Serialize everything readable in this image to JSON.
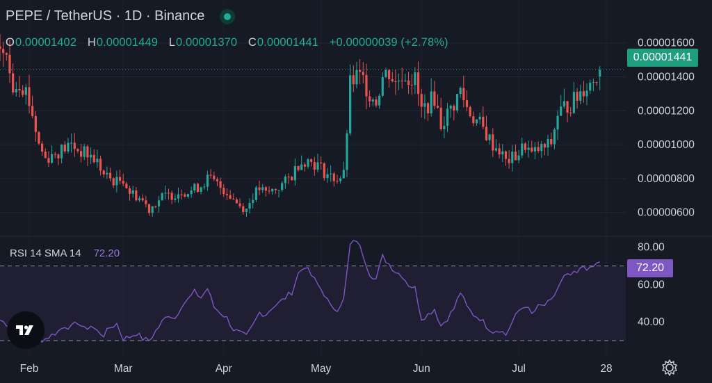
{
  "header": {
    "title": "PEPE / TetherUS · 1D · Binance",
    "ohlc": [
      {
        "key": "O",
        "value": "0.00001402"
      },
      {
        "key": "H",
        "value": "0.00001449"
      },
      {
        "key": "L",
        "value": "0.00001370"
      },
      {
        "key": "C",
        "value": "0.00001441"
      }
    ],
    "change": "+0.00000039 (+2.78%)"
  },
  "price_badge": "0.00001441",
  "rsi": {
    "label": "RSI 14 SMA 14",
    "value": "72.20",
    "badge": "72.20"
  },
  "colors": {
    "background": "#161a25",
    "up": "#26a69a",
    "down": "#ef5350",
    "rsi_line": "#7e57c2",
    "rsi_band": "#2a2340",
    "price_badge": "#1e9e7e",
    "rsi_badge": "#7e57c2"
  },
  "icons": [
    "status-dot-icon",
    "tradingview-logo-icon",
    "settings-gear-icon"
  ],
  "chart_data": [
    {
      "type": "candlestick",
      "title": "PEPE / TetherUS · 1D · Binance",
      "y_ticks": [
        "0.00001600",
        "0.00001400",
        "0.00001200",
        "0.00001000",
        "0.00000800",
        "0.00000600"
      ],
      "y_tick_values": [
        1.6e-05,
        1.4e-05,
        1.2e-05,
        1e-05,
        8e-06,
        6e-06
      ],
      "x_ticks": [
        "Feb",
        "Mar",
        "Apr",
        "May",
        "Jun",
        "Jul",
        "28"
      ],
      "x_tick_days": [
        31,
        60,
        91,
        121,
        152,
        182,
        209
      ],
      "x_range_days": [
        22,
        215
      ],
      "ylim": [
        4.8e-06,
        1.73e-05
      ],
      "last_close": 1.441e-05,
      "close_series_anchors": [
        [
          22,
          1.58e-05
        ],
        [
          24,
          1.5e-05
        ],
        [
          26,
          1.35e-05
        ],
        [
          28,
          1.38e-05
        ],
        [
          30,
          1.32e-05
        ],
        [
          32,
          1.18e-05
        ],
        [
          34,
          1e-05
        ],
        [
          36,
          9.2e-06
        ],
        [
          38,
          9.4e-06
        ],
        [
          40,
          9.6e-06
        ],
        [
          42,
          9.8e-06
        ],
        [
          44,
          1e-05
        ],
        [
          46,
          9.7e-06
        ],
        [
          48,
          9.5e-06
        ],
        [
          50,
          9.3e-06
        ],
        [
          52,
          9e-06
        ],
        [
          54,
          8.2e-06
        ],
        [
          56,
          8e-06
        ],
        [
          58,
          7.8e-06
        ],
        [
          60,
          8e-06
        ],
        [
          62,
          7.2e-06
        ],
        [
          64,
          7e-06
        ],
        [
          66,
          6.7e-06
        ],
        [
          68,
          6.2e-06
        ],
        [
          70,
          6.6e-06
        ],
        [
          72,
          6.9e-06
        ],
        [
          74,
          7e-06
        ],
        [
          76,
          7.1e-06
        ],
        [
          78,
          7.3e-06
        ],
        [
          80,
          7.2e-06
        ],
        [
          82,
          7.4e-06
        ],
        [
          84,
          7.6e-06
        ],
        [
          86,
          8e-06
        ],
        [
          88,
          7.8e-06
        ],
        [
          90,
          7.5e-06
        ],
        [
          92,
          7.2e-06
        ],
        [
          94,
          6.8e-06
        ],
        [
          96,
          6.4e-06
        ],
        [
          98,
          6.2e-06
        ],
        [
          100,
          7e-06
        ],
        [
          102,
          7.4e-06
        ],
        [
          104,
          7.1e-06
        ],
        [
          106,
          7.3e-06
        ],
        [
          108,
          7.5e-06
        ],
        [
          110,
          7.8e-06
        ],
        [
          112,
          8.2e-06
        ],
        [
          114,
          8.9e-06
        ],
        [
          116,
          9.1e-06
        ],
        [
          118,
          9e-06
        ],
        [
          120,
          8.8e-06
        ],
        [
          122,
          8.4e-06
        ],
        [
          124,
          8.1e-06
        ],
        [
          126,
          8e-06
        ],
        [
          128,
          8.2e-06
        ],
        [
          130,
          1.35e-05
        ],
        [
          132,
          1.4e-05
        ],
        [
          134,
          1.38e-05
        ],
        [
          136,
          1.3e-05
        ],
        [
          138,
          1.26e-05
        ],
        [
          140,
          1.4e-05
        ],
        [
          142,
          1.43e-05
        ],
        [
          144,
          1.36e-05
        ],
        [
          146,
          1.42e-05
        ],
        [
          148,
          1.4e-05
        ],
        [
          150,
          1.38e-05
        ],
        [
          152,
          1.2e-05
        ],
        [
          154,
          1.24e-05
        ],
        [
          156,
          1.28e-05
        ],
        [
          158,
          1.12e-05
        ],
        [
          160,
          1.18e-05
        ],
        [
          162,
          1.24e-05
        ],
        [
          164,
          1.32e-05
        ],
        [
          166,
          1.22e-05
        ],
        [
          168,
          1.16e-05
        ],
        [
          170,
          1.12e-05
        ],
        [
          172,
          1.06e-05
        ],
        [
          174,
          1e-05
        ],
        [
          176,
          9.7e-06
        ],
        [
          178,
          9e-06
        ],
        [
          180,
          9.2e-06
        ],
        [
          182,
          9.5e-06
        ],
        [
          184,
          1e-05
        ],
        [
          186,
          9.4e-06
        ],
        [
          188,
          9.7e-06
        ],
        [
          190,
          9.8e-06
        ],
        [
          192,
          1.01e-05
        ],
        [
          194,
          1.18e-05
        ],
        [
          196,
          1.22e-05
        ],
        [
          198,
          1.24e-05
        ],
        [
          200,
          1.28e-05
        ],
        [
          202,
          1.34e-05
        ],
        [
          204,
          1.36e-05
        ],
        [
          206,
          1.41e-05
        ],
        [
          207,
          1.44e-05
        ]
      ]
    },
    {
      "type": "line",
      "title": "RSI 14 SMA 14",
      "value": 72.2,
      "y_ticks": [
        "80.00",
        "60.00",
        "40.00"
      ],
      "y_tick_values": [
        80,
        60,
        40
      ],
      "ylim": [
        27,
        84
      ],
      "band": [
        30,
        70
      ],
      "x_range_days": [
        22,
        215
      ],
      "x": [
        22,
        24,
        26,
        28,
        30,
        32,
        34,
        36,
        38,
        40,
        42,
        44,
        46,
        48,
        50,
        52,
        54,
        56,
        58,
        60,
        62,
        64,
        66,
        68,
        70,
        72,
        74,
        76,
        78,
        80,
        82,
        84,
        86,
        88,
        90,
        92,
        94,
        96,
        98,
        100,
        102,
        104,
        106,
        108,
        110,
        112,
        114,
        116,
        118,
        120,
        122,
        124,
        126,
        128,
        130,
        132,
        134,
        136,
        138,
        140,
        142,
        144,
        146,
        148,
        150,
        152,
        154,
        156,
        158,
        160,
        162,
        164,
        166,
        168,
        170,
        172,
        174,
        176,
        178,
        180,
        182,
        184,
        186,
        188,
        190,
        192,
        194,
        196,
        198,
        200,
        202,
        204,
        206,
        207
      ],
      "values": [
        41,
        39,
        38,
        37,
        35,
        32,
        30,
        31,
        33,
        35,
        38,
        37,
        40,
        36,
        38,
        35,
        33,
        37,
        39,
        31,
        32,
        34,
        31,
        30,
        35,
        40,
        44,
        42,
        49,
        52,
        56,
        53,
        58,
        48,
        45,
        42,
        36,
        34,
        32,
        38,
        45,
        44,
        48,
        50,
        53,
        56,
        66,
        70,
        65,
        60,
        55,
        48,
        47,
        52,
        81,
        84,
        76,
        66,
        63,
        75,
        71,
        67,
        65,
        60,
        58,
        42,
        44,
        47,
        38,
        42,
        47,
        56,
        48,
        44,
        42,
        38,
        35,
        36,
        33,
        40,
        46,
        49,
        44,
        48,
        49,
        51,
        58,
        64,
        65,
        66,
        70,
        68,
        71,
        72.2
      ]
    }
  ]
}
